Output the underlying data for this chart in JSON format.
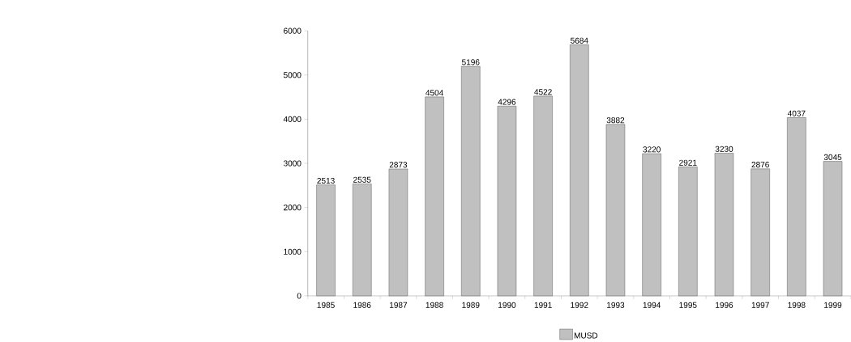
{
  "chart_data": {
    "type": "bar",
    "categories": [
      "1985",
      "1986",
      "1987",
      "1988",
      "1989",
      "1990",
      "1991",
      "1992",
      "1993",
      "1994",
      "1995",
      "1996",
      "1997",
      "1998",
      "1999"
    ],
    "series": [
      {
        "name": "MUSD",
        "color": "#c0c0c0",
        "values": [
          2513,
          2535,
          2873,
          4504,
          5196,
          4296,
          4522,
          5684,
          3882,
          3220,
          2921,
          3230,
          2876,
          4037,
          3045
        ]
      }
    ],
    "ylim": [
      0,
      6000
    ],
    "yticks": [
      0,
      1000,
      2000,
      3000,
      4000,
      5000,
      6000
    ],
    "data_labels": true,
    "grid": false,
    "legend": "bottom"
  }
}
